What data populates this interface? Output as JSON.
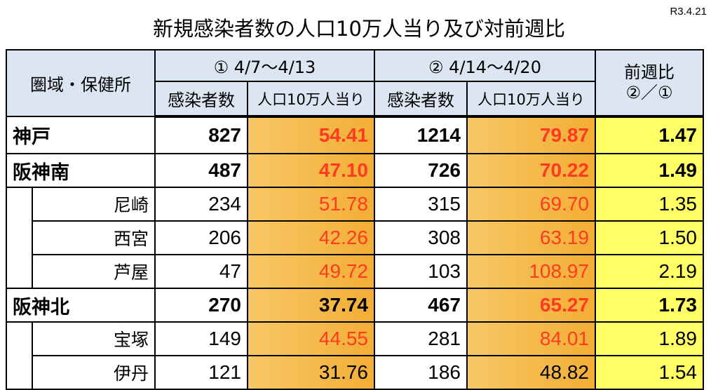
{
  "header": {
    "title": "新規感染者数の人口10万人当り及び対前週比",
    "date": "R3.4.21"
  },
  "table": {
    "area_header": "圏域・保健所",
    "period1": "① 4/7〜4/13",
    "period2": "② 4/14〜4/20",
    "cases": "感染者数",
    "per100k": "人口10万人当り",
    "cases2": "感染者数",
    "per100k2": "人口10万人当り",
    "ratio": "前週比",
    "ratio_sub": "②／①",
    "rows": [
      {
        "name": "神戸",
        "level": 0,
        "values": [
          "827",
          "54.41",
          "1214",
          "79.87",
          "1.47"
        ],
        "rate_colors": [
          "#ff3b1f",
          "#ff3b1f"
        ]
      },
      {
        "name": "阪神南",
        "level": 0,
        "values": [
          "487",
          "47.10",
          "726",
          "70.22",
          "1.49"
        ],
        "rate_colors": [
          "#ff3b1f",
          "#ff3b1f"
        ]
      },
      {
        "name": "尼崎",
        "level": 1,
        "values": [
          "234",
          "51.78",
          "315",
          "69.70",
          "1.35"
        ],
        "rate_colors": [
          "#ff3b1f",
          "#ff3b1f"
        ]
      },
      {
        "name": "西宮",
        "level": 1,
        "values": [
          "206",
          "42.26",
          "308",
          "63.19",
          "1.50"
        ],
        "rate_colors": [
          "#ff3b1f",
          "#ff3b1f"
        ]
      },
      {
        "name": "芦屋",
        "level": 1,
        "values": [
          "47",
          "49.72",
          "103",
          "108.97",
          "2.19"
        ],
        "rate_colors": [
          "#ff3b1f",
          "#ff3b1f"
        ]
      },
      {
        "name": "阪神北",
        "level": 0,
        "values": [
          "270",
          "37.74",
          "467",
          "65.27",
          "1.73"
        ],
        "rate_colors": [
          "#000000",
          "#ff3b1f"
        ]
      },
      {
        "name": "宝塚",
        "level": 1,
        "values": [
          "149",
          "44.55",
          "281",
          "84.01",
          "1.89"
        ],
        "rate_colors": [
          "#ff3b1f",
          "#ff3b1f"
        ]
      },
      {
        "name": "伊丹",
        "level": 1,
        "values": [
          "121",
          "31.76",
          "186",
          "48.82",
          "1.54"
        ],
        "rate_colors": [
          "#000000",
          "#000000"
        ]
      }
    ]
  }
}
